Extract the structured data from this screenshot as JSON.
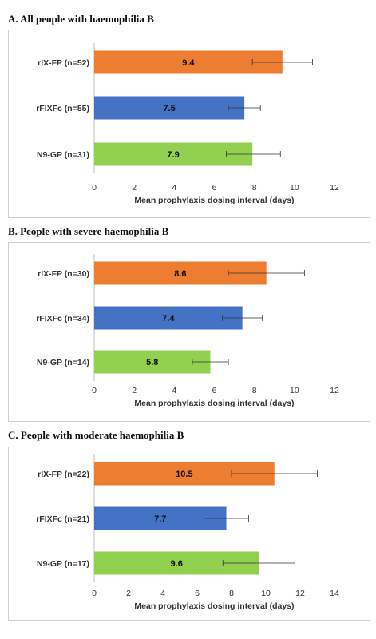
{
  "chart_data": [
    {
      "type": "bar",
      "orientation": "horizontal",
      "title": "A. All people with haemophilia B",
      "xlabel": "Mean prophylaxis dosing interval (days)",
      "xlim": [
        0,
        12
      ],
      "xticks": [
        0,
        2,
        4,
        6,
        8,
        10,
        12
      ],
      "categories": [
        "rIX-FP (n=52)",
        "rFIXFc (n=55)",
        "N9-GP (n=31)"
      ],
      "values": [
        9.4,
        7.5,
        7.9
      ],
      "error_low": [
        7.9,
        6.7,
        6.6
      ],
      "error_high": [
        10.9,
        8.3,
        9.3
      ],
      "colors": [
        "#ED7D31",
        "#4472C4",
        "#92D050"
      ]
    },
    {
      "type": "bar",
      "orientation": "horizontal",
      "title": "B. People with severe haemophilia B",
      "xlabel": "Mean prophylaxis dosing interval (days)",
      "xlim": [
        0,
        12
      ],
      "xticks": [
        0,
        2,
        4,
        6,
        8,
        10,
        12
      ],
      "categories": [
        "rIX-FP (n=30)",
        "rFIXFc (n=34)",
        "N9-GP (n=14)"
      ],
      "values": [
        8.6,
        7.4,
        5.8
      ],
      "error_low": [
        6.7,
        6.4,
        4.9
      ],
      "error_high": [
        10.5,
        8.4,
        6.7
      ],
      "colors": [
        "#ED7D31",
        "#4472C4",
        "#92D050"
      ]
    },
    {
      "type": "bar",
      "orientation": "horizontal",
      "title": "C. People with moderate haemophilia B",
      "xlabel": "Mean prophylaxis dosing interval (days)",
      "xlim": [
        0,
        14
      ],
      "xticks": [
        0,
        2,
        4,
        6,
        8,
        10,
        12,
        14
      ],
      "categories": [
        "rIX-FP (n=22)",
        "rFIXFc (n=21)",
        "N9-GP (n=17)"
      ],
      "values": [
        10.5,
        7.7,
        9.6
      ],
      "error_low": [
        8.0,
        6.4,
        7.5
      ],
      "error_high": [
        13.0,
        9.0,
        11.7
      ],
      "colors": [
        "#ED7D31",
        "#4472C4",
        "#92D050"
      ]
    }
  ]
}
